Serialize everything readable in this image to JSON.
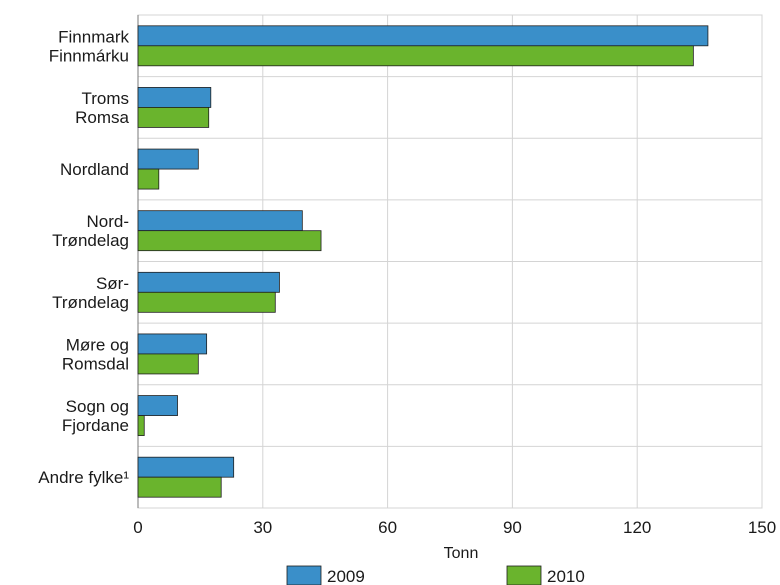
{
  "chart_data": {
    "type": "bar",
    "orientation": "horizontal",
    "categories": [
      [
        "Finnmark",
        "Finnmárku"
      ],
      [
        "Troms",
        "Romsa"
      ],
      [
        "Nordland"
      ],
      [
        "Nord-",
        "Trøndelag"
      ],
      [
        "Sør-",
        "Trøndelag"
      ],
      [
        "Møre og",
        "Romsdal"
      ],
      [
        "Sogn og",
        "Fjordane"
      ],
      [
        "Andre fylke¹"
      ]
    ],
    "series": [
      {
        "name": "2009",
        "color": "#3a8fc9",
        "values": [
          137,
          17.5,
          14.5,
          39.5,
          34,
          16.5,
          9.5,
          23
        ]
      },
      {
        "name": "2010",
        "color": "#6ab42d",
        "values": [
          133.5,
          17,
          5,
          44,
          33,
          14.5,
          1.5,
          20
        ]
      }
    ],
    "xlabel": "Tonn",
    "xlim": [
      0,
      150
    ],
    "xticks": [
      0,
      30,
      60,
      90,
      120,
      150
    ],
    "xtick_labels": [
      "0",
      "30",
      "60",
      "90",
      "120",
      "150"
    ],
    "grid": true,
    "legend_position": "bottom"
  }
}
